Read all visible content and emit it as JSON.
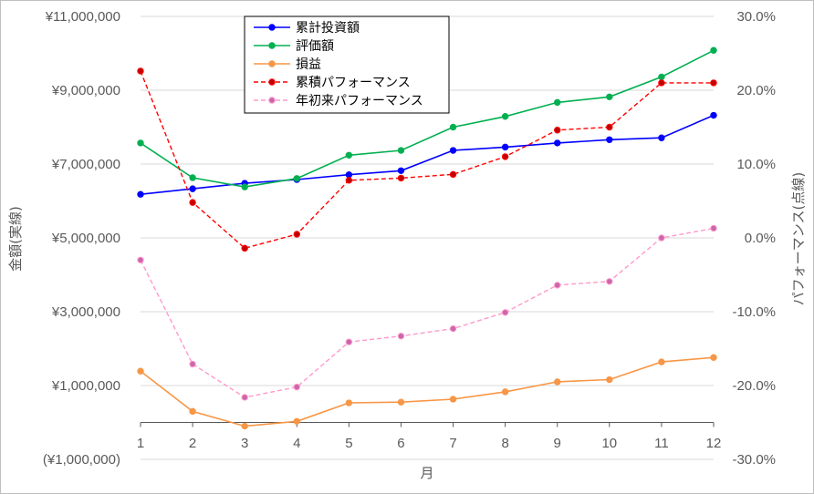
{
  "chart_data": {
    "type": "line",
    "x": [
      1,
      2,
      3,
      4,
      5,
      6,
      7,
      8,
      9,
      10,
      11,
      12
    ],
    "xlabel": "月",
    "ylabel": "金額(実線)",
    "ylabel_right": "パフォーマンス(点線)",
    "ylim": [
      -1000000,
      11000000
    ],
    "ylim_right": [
      -0.3,
      0.3
    ],
    "y_tick_labels": [
      "(¥1,000,000)",
      "¥1,000,000",
      "¥3,000,000",
      "¥5,000,000",
      "¥7,000,000",
      "¥9,000,000",
      "¥11,000,000"
    ],
    "y_ticks": [
      -1000000,
      1000000,
      3000000,
      5000000,
      7000000,
      9000000,
      11000000
    ],
    "y_right_tick_labels": [
      "-30.0%",
      "-20.0%",
      "-10.0%",
      "0.0%",
      "10.0%",
      "20.0%",
      "30.0%"
    ],
    "y_right_ticks": [
      -0.3,
      -0.2,
      -0.1,
      0.0,
      0.1,
      0.2,
      0.3
    ],
    "x_tick_labels": [
      "1",
      "2",
      "3",
      "4",
      "5",
      "6",
      "7",
      "8",
      "9",
      "10",
      "11",
      "12"
    ],
    "grid": "horizontal",
    "legend_position": "top-center",
    "series": [
      {
        "name": "累計投資額",
        "axis": "left",
        "style": "solid",
        "color": "#0000ff",
        "values": [
          6180000,
          6330000,
          6480000,
          6580000,
          6710000,
          6820000,
          7370000,
          7460000,
          7570000,
          7660000,
          7710000,
          8320000
        ]
      },
      {
        "name": "評価額",
        "axis": "left",
        "style": "solid",
        "color": "#00b050",
        "values": [
          7570000,
          6630000,
          6380000,
          6610000,
          7240000,
          7370000,
          8000000,
          8290000,
          8670000,
          8820000,
          9360000,
          10080000
        ]
      },
      {
        "name": "損益",
        "axis": "left",
        "style": "solid",
        "color": "#f79646",
        "values": [
          1390000,
          300000,
          -100000,
          30000,
          530000,
          550000,
          630000,
          830000,
          1100000,
          1160000,
          1640000,
          1760000
        ]
      },
      {
        "name": "累積パフォーマンス",
        "axis": "right",
        "style": "dashed",
        "color": "#ff0000",
        "marker_color": "#c00000",
        "values": [
          0.226,
          0.048,
          -0.014,
          0.005,
          0.078,
          0.081,
          0.086,
          0.11,
          0.146,
          0.15,
          0.21,
          0.21
        ]
      },
      {
        "name": "年初来パフォーマンス",
        "axis": "right",
        "style": "dashed",
        "color": "#ff99cc",
        "marker_color": "#cc66aa",
        "values": [
          -0.03,
          -0.171,
          -0.216,
          -0.202,
          -0.141,
          -0.133,
          -0.123,
          -0.101,
          -0.064,
          -0.059,
          0.0,
          0.013
        ]
      }
    ]
  }
}
